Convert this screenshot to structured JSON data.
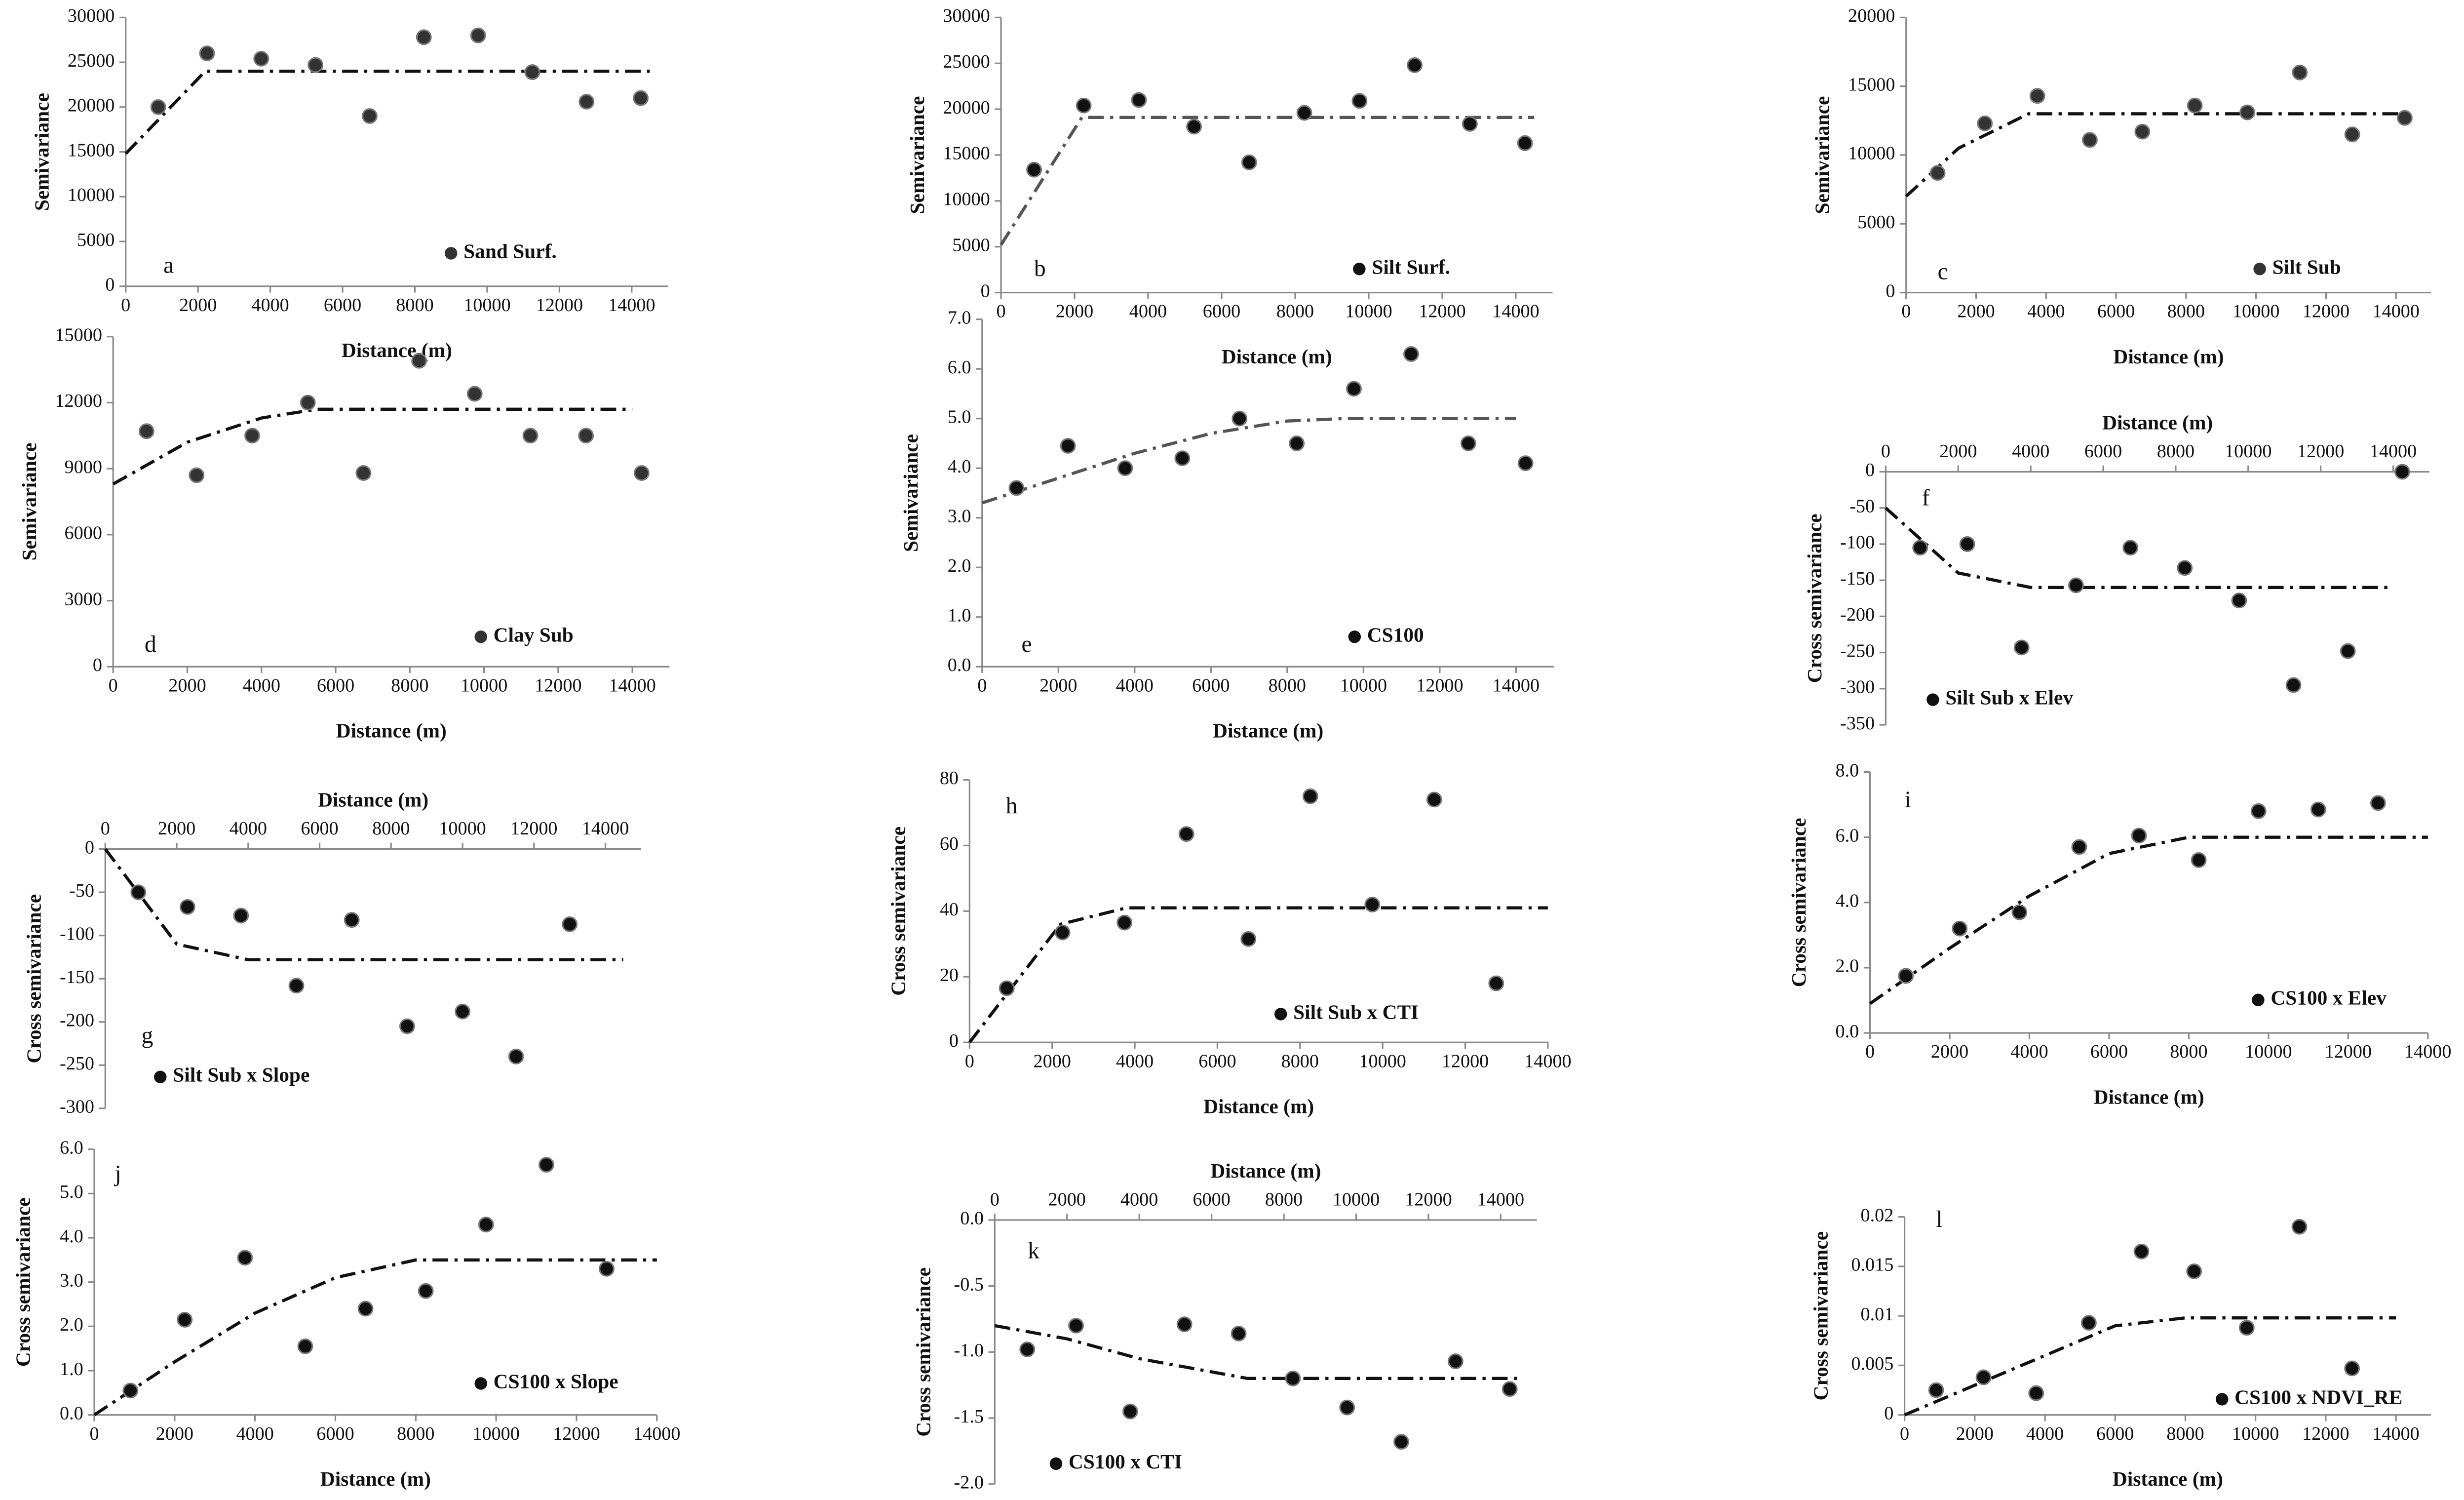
{
  "chart_data": [
    {
      "type": "scatter",
      "label": "a",
      "xlabel": "Distance (m)",
      "ylabel": "Semivariance",
      "x_axis": "bottom",
      "xlim": [
        0,
        15000
      ],
      "xticks": [
        0,
        2000,
        4000,
        6000,
        8000,
        10000,
        12000,
        14000
      ],
      "ylim": [
        0,
        30000
      ],
      "yticks": [
        0,
        5000,
        10000,
        15000,
        20000,
        25000,
        30000
      ],
      "series": [
        {
          "name": "Sand Surf.",
          "color": "#333333",
          "x": [
            900,
            2250,
            3750,
            5250,
            6750,
            8250,
            9750,
            11250,
            12750,
            14250
          ],
          "values": [
            20000,
            26000,
            25400,
            24700,
            19000,
            27800,
            28000,
            23900,
            20600,
            21000
          ]
        }
      ],
      "model": {
        "x": [
          0,
          2200,
          14500
        ],
        "values": [
          14800,
          24000,
          24000
        ],
        "color": "#111111"
      }
    },
    {
      "type": "scatter",
      "label": "b",
      "xlabel": "Distance (m)",
      "ylabel": "Semivariance",
      "x_axis": "bottom",
      "xlim": [
        0,
        15000
      ],
      "xticks": [
        0,
        2000,
        4000,
        6000,
        8000,
        10000,
        12000,
        14000
      ],
      "ylim": [
        0,
        30000
      ],
      "yticks": [
        0,
        5000,
        10000,
        15000,
        20000,
        25000,
        30000
      ],
      "series": [
        {
          "name": "Silt Surf.",
          "color": "#111111",
          "x": [
            900,
            2250,
            3750,
            5250,
            6750,
            8250,
            9750,
            11250,
            12750,
            14250
          ],
          "values": [
            13400,
            20400,
            21000,
            18100,
            14200,
            19600,
            20900,
            24800,
            18400,
            16300
          ]
        }
      ],
      "model": {
        "x": [
          0,
          2200,
          14500
        ],
        "values": [
          5200,
          19100,
          19100
        ],
        "color": "#555555"
      }
    },
    {
      "type": "scatter",
      "label": "c",
      "xlabel": "Distance (m)",
      "ylabel": "Semivariance",
      "x_axis": "bottom",
      "xlim": [
        0,
        15000
      ],
      "xticks": [
        0,
        2000,
        4000,
        6000,
        8000,
        10000,
        12000,
        14000
      ],
      "ylim": [
        0,
        20000
      ],
      "yticks": [
        0,
        5000,
        10000,
        15000,
        20000
      ],
      "series": [
        {
          "name": "Silt Sub",
          "color": "#333333",
          "x": [
            900,
            2250,
            3750,
            5250,
            6750,
            8250,
            9750,
            11250,
            12750,
            14250
          ],
          "values": [
            8700,
            12300,
            14300,
            11100,
            11700,
            13600,
            13100,
            16000,
            11500,
            12700
          ]
        }
      ],
      "model": {
        "x": [
          0,
          1500,
          3500,
          14500
        ],
        "values": [
          7000,
          10500,
          13000,
          13000
        ],
        "color": "#111111"
      }
    },
    {
      "type": "scatter",
      "label": "d",
      "xlabel": "Distance (m)",
      "ylabel": "Semivariance",
      "x_axis": "bottom",
      "xlim": [
        0,
        15000
      ],
      "xticks": [
        0,
        2000,
        4000,
        6000,
        8000,
        10000,
        12000,
        14000
      ],
      "ylim": [
        0,
        15000
      ],
      "yticks": [
        0,
        3000,
        6000,
        9000,
        12000,
        15000
      ],
      "series": [
        {
          "name": "Clay Sub",
          "color": "#333333",
          "x": [
            900,
            2250,
            3750,
            5250,
            6750,
            8250,
            9750,
            11250,
            12750,
            14250
          ],
          "values": [
            10700,
            8700,
            10500,
            12000,
            8800,
            13900,
            12400,
            10500,
            10500,
            8800
          ]
        }
      ],
      "model": {
        "x": [
          0,
          2000,
          4000,
          5500,
          14000
        ],
        "values": [
          8300,
          10200,
          11300,
          11700,
          11700
        ],
        "color": "#111111"
      }
    },
    {
      "type": "scatter",
      "label": "e",
      "xlabel": "Distance (m)",
      "ylabel": "Semivariance",
      "x_axis": "bottom",
      "xlim": [
        0,
        15000
      ],
      "xticks": [
        0,
        2000,
        4000,
        6000,
        8000,
        10000,
        12000,
        14000
      ],
      "ylim": [
        0,
        7
      ],
      "yticks": [
        {
          "value": 0,
          "label": "0.0"
        },
        {
          "value": 1,
          "label": "1.0"
        },
        {
          "value": 2,
          "label": "2.0"
        },
        {
          "value": 3,
          "label": "3.0"
        },
        {
          "value": 4,
          "label": "4.0"
        },
        {
          "value": 5,
          "label": "5.0"
        },
        {
          "value": 6,
          "label": "6.0"
        },
        {
          "value": 7,
          "label": "7.0"
        }
      ],
      "series": [
        {
          "name": "CS100",
          "color": "#111111",
          "x": [
            900,
            2250,
            3750,
            5250,
            6750,
            8250,
            9750,
            11250,
            12750,
            14250
          ],
          "values": [
            3.6,
            4.45,
            4.0,
            4.2,
            5.0,
            4.5,
            5.6,
            6.3,
            4.5,
            4.1
          ]
        }
      ],
      "model": {
        "x": [
          0,
          2000,
          4000,
          6000,
          8000,
          9500,
          14000
        ],
        "values": [
          3.3,
          3.8,
          4.3,
          4.7,
          4.95,
          5.0,
          5.0
        ],
        "color": "#555555"
      }
    },
    {
      "type": "scatter",
      "label": "f",
      "xlabel": "Distance (m)",
      "ylabel": "Cross semivariance",
      "x_axis": "top",
      "xlim": [
        0,
        15000
      ],
      "xticks": [
        0,
        2000,
        4000,
        6000,
        8000,
        10000,
        12000,
        14000
      ],
      "ylim": [
        -350,
        0
      ],
      "yticks": [
        0,
        -50,
        -100,
        -150,
        -200,
        -250,
        -300,
        -350
      ],
      "series": [
        {
          "name": "Silt Sub x Elev",
          "color": "#111111",
          "x": [
            950,
            2250,
            3750,
            5250,
            6750,
            8250,
            9750,
            11250,
            12750,
            14250
          ],
          "values": [
            -105,
            -100,
            -243,
            -157,
            -105,
            -133,
            -178,
            -295,
            -248,
            0
          ]
        }
      ],
      "model": {
        "x": [
          0,
          2000,
          4000,
          14000
        ],
        "values": [
          -50,
          -140,
          -160,
          -160
        ],
        "color": "#111111"
      }
    },
    {
      "type": "scatter",
      "label": "g",
      "xlabel": "Distance (m)",
      "ylabel": "Cross semivariance",
      "x_axis": "top",
      "xlim": [
        0,
        15000
      ],
      "xticks": [
        0,
        2000,
        4000,
        6000,
        8000,
        10000,
        12000,
        14000
      ],
      "ylim": [
        -300,
        0
      ],
      "yticks": [
        0,
        -50,
        -100,
        -150,
        -200,
        -250,
        -300
      ],
      "series": [
        {
          "name": "Silt Sub x Slope",
          "color": "#111111",
          "x": [
            925,
            2300,
            3800,
            5350,
            6900,
            8450,
            10000,
            11500,
            13000
          ],
          "values": [
            -50,
            -67,
            -77,
            -158,
            -82,
            -205,
            -188,
            -240,
            -87
          ]
        }
      ],
      "model": {
        "x": [
          0,
          2000,
          4000,
          14500
        ],
        "values": [
          0,
          -110,
          -128,
          -128
        ],
        "color": "#111111"
      }
    },
    {
      "type": "scatter",
      "label": "h",
      "xlabel": "Distance (m)",
      "ylabel": "Cross semivariance",
      "x_axis": "bottom",
      "xlim": [
        0,
        14000
      ],
      "xticks": [
        0,
        2000,
        4000,
        6000,
        8000,
        10000,
        12000,
        14000
      ],
      "ylim": [
        0,
        80
      ],
      "yticks": [
        0,
        20,
        40,
        60,
        80
      ],
      "series": [
        {
          "name": "Silt Sub x CTI",
          "color": "#111111",
          "x": [
            900,
            2250,
            3750,
            5250,
            6750,
            8250,
            9750,
            11250,
            12750
          ],
          "values": [
            16.5,
            33.5,
            36.5,
            63.5,
            31.5,
            75,
            42,
            74,
            18
          ]
        }
      ],
      "model": {
        "x": [
          0,
          2200,
          3800,
          14000
        ],
        "values": [
          0,
          36,
          41,
          41
        ],
        "color": "#111111"
      }
    },
    {
      "type": "scatter",
      "label": "i",
      "xlabel": "Distance (m)",
      "ylabel": "Cross semivariance",
      "x_axis": "bottom",
      "xlim": [
        0,
        14000
      ],
      "xticks": [
        0,
        2000,
        4000,
        6000,
        8000,
        10000,
        12000,
        14000
      ],
      "ylim": [
        0,
        8
      ],
      "yticks": [
        {
          "value": 0,
          "label": "0.0"
        },
        {
          "value": 2,
          "label": "2.0"
        },
        {
          "value": 4,
          "label": "4.0"
        },
        {
          "value": 6,
          "label": "6.0"
        },
        {
          "value": 8,
          "label": "8.0"
        }
      ],
      "series": [
        {
          "name": "CS100 x Elev",
          "color": "#111111",
          "x": [
            900,
            2250,
            3750,
            5250,
            6750,
            8250,
            9750,
            11250,
            12750
          ],
          "values": [
            1.75,
            3.2,
            3.7,
            5.7,
            6.05,
            5.3,
            6.8,
            6.85,
            7.05
          ]
        }
      ],
      "model": {
        "x": [
          0,
          2000,
          4000,
          6000,
          8000,
          14000
        ],
        "values": [
          0.9,
          2.6,
          4.2,
          5.5,
          6.0,
          6.0
        ],
        "color": "#111111"
      }
    },
    {
      "type": "scatter",
      "label": "j",
      "xlabel": "Distance (m)",
      "ylabel": "Cross semivariance",
      "x_axis": "bottom",
      "xlim": [
        0,
        14000
      ],
      "xticks": [
        0,
        2000,
        4000,
        6000,
        8000,
        10000,
        12000,
        14000
      ],
      "ylim": [
        0,
        6
      ],
      "yticks": [
        {
          "value": 0,
          "label": "0.0"
        },
        {
          "value": 1,
          "label": "1.0"
        },
        {
          "value": 2,
          "label": "2.0"
        },
        {
          "value": 3,
          "label": "3.0"
        },
        {
          "value": 4,
          "label": "4.0"
        },
        {
          "value": 5,
          "label": "5.0"
        },
        {
          "value": 6,
          "label": "6.0"
        }
      ],
      "series": [
        {
          "name": "CS100 x Slope",
          "color": "#111111",
          "x": [
            900,
            2250,
            3750,
            5250,
            6750,
            8250,
            9750,
            11250,
            12750
          ],
          "values": [
            0.55,
            2.15,
            3.55,
            1.55,
            2.4,
            2.8,
            4.3,
            5.65,
            3.3
          ]
        }
      ],
      "model": {
        "x": [
          0,
          2000,
          4000,
          6000,
          8000,
          14000
        ],
        "values": [
          0,
          1.2,
          2.3,
          3.1,
          3.5,
          3.5
        ],
        "color": "#111111"
      }
    },
    {
      "type": "scatter",
      "label": "k",
      "xlabel": "Distance (m)",
      "ylabel": "Cross semivariance",
      "x_axis": "top",
      "xlim": [
        0,
        15000
      ],
      "xticks": [
        0,
        2000,
        4000,
        6000,
        8000,
        10000,
        12000,
        14000
      ],
      "ylim": [
        -2,
        0
      ],
      "yticks": [
        {
          "value": 0,
          "label": "0.0"
        },
        -0.5,
        {
          "value": -1,
          "label": "-1.0"
        },
        -1.5,
        {
          "value": -2,
          "label": "-2.0"
        }
      ],
      "series": [
        {
          "name": "CS100 x CTI",
          "color": "#111111",
          "x": [
            900,
            2250,
            3750,
            5250,
            6750,
            8250,
            9750,
            11250,
            12750,
            14250
          ],
          "values": [
            -0.98,
            -0.8,
            -1.45,
            -0.79,
            -0.86,
            -1.2,
            -1.42,
            -1.68,
            -1.07,
            -1.28
          ]
        }
      ],
      "model": {
        "x": [
          0,
          2000,
          4000,
          6000,
          7000,
          14500
        ],
        "values": [
          -0.8,
          -0.9,
          -1.05,
          -1.15,
          -1.2,
          -1.2
        ],
        "color": "#111111"
      }
    },
    {
      "type": "scatter",
      "label": "l",
      "xlabel": "Distance (m)",
      "ylabel": "Cross semivariance",
      "x_axis": "bottom",
      "xlim": [
        0,
        15000
      ],
      "xticks": [
        0,
        2000,
        4000,
        6000,
        8000,
        10000,
        12000,
        14000
      ],
      "ylim": [
        0,
        0.02
      ],
      "yticks": [
        0,
        0.005,
        0.01,
        0.015,
        0.02
      ],
      "series": [
        {
          "name": "CS100 x NDVI_RE",
          "color": "#111111",
          "x": [
            900,
            2250,
            3750,
            5250,
            6750,
            8250,
            9750,
            11250,
            12750
          ],
          "values": [
            0.0025,
            0.0038,
            0.0022,
            0.0093,
            0.0165,
            0.0145,
            0.0088,
            0.019,
            0.0047
          ]
        }
      ],
      "model": {
        "x": [
          0,
          2000,
          4000,
          6000,
          8000,
          14000
        ],
        "values": [
          0,
          0.003,
          0.006,
          0.009,
          0.0098,
          0.0098
        ],
        "color": "#111111"
      }
    }
  ]
}
